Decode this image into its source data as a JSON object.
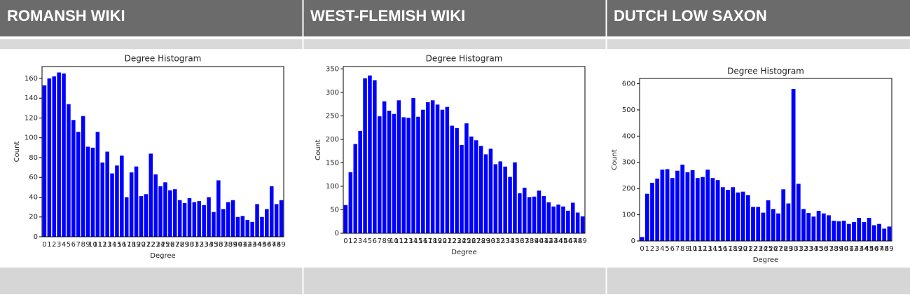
{
  "table": {
    "headers": [
      "ROMANSH WIKI",
      "WEST-FLEMISH WIKI",
      "DUTCH LOW SAXON"
    ]
  },
  "chart_data": [
    {
      "type": "bar",
      "title": "Degree Histogram",
      "x_label": "Degree",
      "y_label": "Count",
      "color": "#0000ff",
      "categories": [
        0,
        1,
        2,
        3,
        4,
        5,
        6,
        7,
        8,
        9,
        10,
        11,
        12,
        13,
        14,
        15,
        16,
        17,
        18,
        19,
        20,
        21,
        22,
        23,
        24,
        25,
        26,
        27,
        28,
        29,
        30,
        31,
        32,
        33,
        34,
        35,
        36,
        37,
        38,
        39,
        40,
        41,
        42,
        43,
        44,
        45,
        46,
        47,
        48,
        49
      ],
      "values": [
        153,
        160,
        162,
        166,
        165,
        134,
        118,
        106,
        122,
        91,
        90,
        106,
        75,
        86,
        64,
        72,
        82,
        40,
        65,
        71,
        41,
        43,
        84,
        63,
        51,
        55,
        47,
        48,
        37,
        34,
        39,
        35,
        36,
        32,
        40,
        25,
        57,
        28,
        35,
        37,
        20,
        21,
        17,
        15,
        33,
        20,
        28,
        51,
        33,
        37
      ],
      "ylim": [
        0,
        172
      ],
      "yticks": [
        0,
        20,
        40,
        60,
        80,
        100,
        120,
        140,
        160
      ]
    },
    {
      "type": "bar",
      "title": "Degree Histogram",
      "x_label": "Degree",
      "y_label": "Count",
      "color": "#0000ff",
      "categories": [
        0,
        1,
        2,
        3,
        4,
        5,
        6,
        7,
        8,
        9,
        10,
        11,
        12,
        13,
        14,
        15,
        16,
        17,
        18,
        19,
        20,
        21,
        22,
        23,
        24,
        25,
        26,
        27,
        28,
        29,
        30,
        31,
        32,
        33,
        34,
        35,
        36,
        37,
        38,
        39,
        40,
        41,
        42,
        43,
        44,
        45,
        46,
        47,
        48,
        49
      ],
      "values": [
        60,
        130,
        190,
        218,
        330,
        336,
        326,
        249,
        281,
        261,
        254,
        283,
        247,
        246,
        288,
        248,
        263,
        279,
        283,
        274,
        263,
        269,
        229,
        224,
        188,
        234,
        206,
        198,
        186,
        168,
        180,
        147,
        153,
        142,
        120,
        151,
        85,
        97,
        77,
        78,
        91,
        79,
        66,
        57,
        61,
        57,
        48,
        65,
        44,
        36
      ],
      "ylim": [
        0,
        355
      ],
      "yticks": [
        0,
        50,
        100,
        150,
        200,
        250,
        300,
        350
      ]
    },
    {
      "type": "bar",
      "title": "Degree Histogram",
      "x_label": "Degree",
      "y_label": "Count",
      "color": "#0000ff",
      "categories": [
        0,
        1,
        2,
        3,
        4,
        5,
        6,
        7,
        8,
        9,
        10,
        11,
        12,
        13,
        14,
        15,
        16,
        17,
        18,
        19,
        20,
        21,
        22,
        23,
        24,
        25,
        26,
        27,
        28,
        29,
        30,
        31,
        32,
        33,
        34,
        35,
        36,
        37,
        38,
        39,
        40,
        41,
        42,
        43,
        44,
        45,
        46,
        47,
        48,
        49
      ],
      "values": [
        15,
        180,
        222,
        238,
        272,
        274,
        240,
        268,
        291,
        262,
        270,
        240,
        244,
        272,
        240,
        232,
        205,
        195,
        205,
        185,
        188,
        175,
        130,
        130,
        108,
        155,
        122,
        105,
        197,
        143,
        580,
        218,
        122,
        107,
        93,
        115,
        105,
        98,
        77,
        75,
        77,
        65,
        72,
        88,
        72,
        88,
        60,
        65,
        47,
        55
      ],
      "ylim": [
        0,
        620
      ],
      "yticks": [
        0,
        100,
        200,
        300,
        400,
        500,
        600
      ]
    }
  ]
}
